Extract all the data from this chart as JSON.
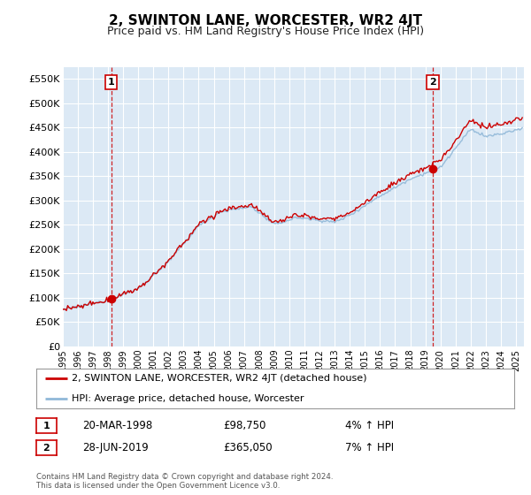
{
  "title": "2, SWINTON LANE, WORCESTER, WR2 4JT",
  "subtitle": "Price paid vs. HM Land Registry's House Price Index (HPI)",
  "ylabel_ticks": [
    "£0",
    "£50K",
    "£100K",
    "£150K",
    "£200K",
    "£250K",
    "£300K",
    "£350K",
    "£400K",
    "£450K",
    "£500K",
    "£550K"
  ],
  "ytick_values": [
    0,
    50000,
    100000,
    150000,
    200000,
    250000,
    300000,
    350000,
    400000,
    450000,
    500000,
    550000
  ],
  "ylim": [
    0,
    575000
  ],
  "xlim_start": 1995.0,
  "xlim_end": 2025.5,
  "xtick_years": [
    1995,
    1996,
    1997,
    1998,
    1999,
    2000,
    2001,
    2002,
    2003,
    2004,
    2005,
    2006,
    2007,
    2008,
    2009,
    2010,
    2011,
    2012,
    2013,
    2014,
    2015,
    2016,
    2017,
    2018,
    2019,
    2020,
    2021,
    2022,
    2023,
    2024,
    2025
  ],
  "background_color": "#ffffff",
  "plot_bg_color": "#dce9f5",
  "grid_color": "#ffffff",
  "sale1_date": 1998.22,
  "sale1_price": 98750,
  "sale2_date": 2019.49,
  "sale2_price": 365050,
  "sale1_label": "1",
  "sale2_label": "2",
  "sale_color": "#cc0000",
  "hpi_line_color": "#90b8d8",
  "price_line_color": "#cc0000",
  "legend1_label": "2, SWINTON LANE, WORCESTER, WR2 4JT (detached house)",
  "legend2_label": "HPI: Average price, detached house, Worcester",
  "table_row1": [
    "1",
    "20-MAR-1998",
    "£98,750",
    "4% ↑ HPI"
  ],
  "table_row2": [
    "2",
    "28-JUN-2019",
    "£365,050",
    "7% ↑ HPI"
  ],
  "footer": "Contains HM Land Registry data © Crown copyright and database right 2024.\nThis data is licensed under the Open Government Licence v3.0.",
  "title_fontsize": 11,
  "subtitle_fontsize": 9
}
